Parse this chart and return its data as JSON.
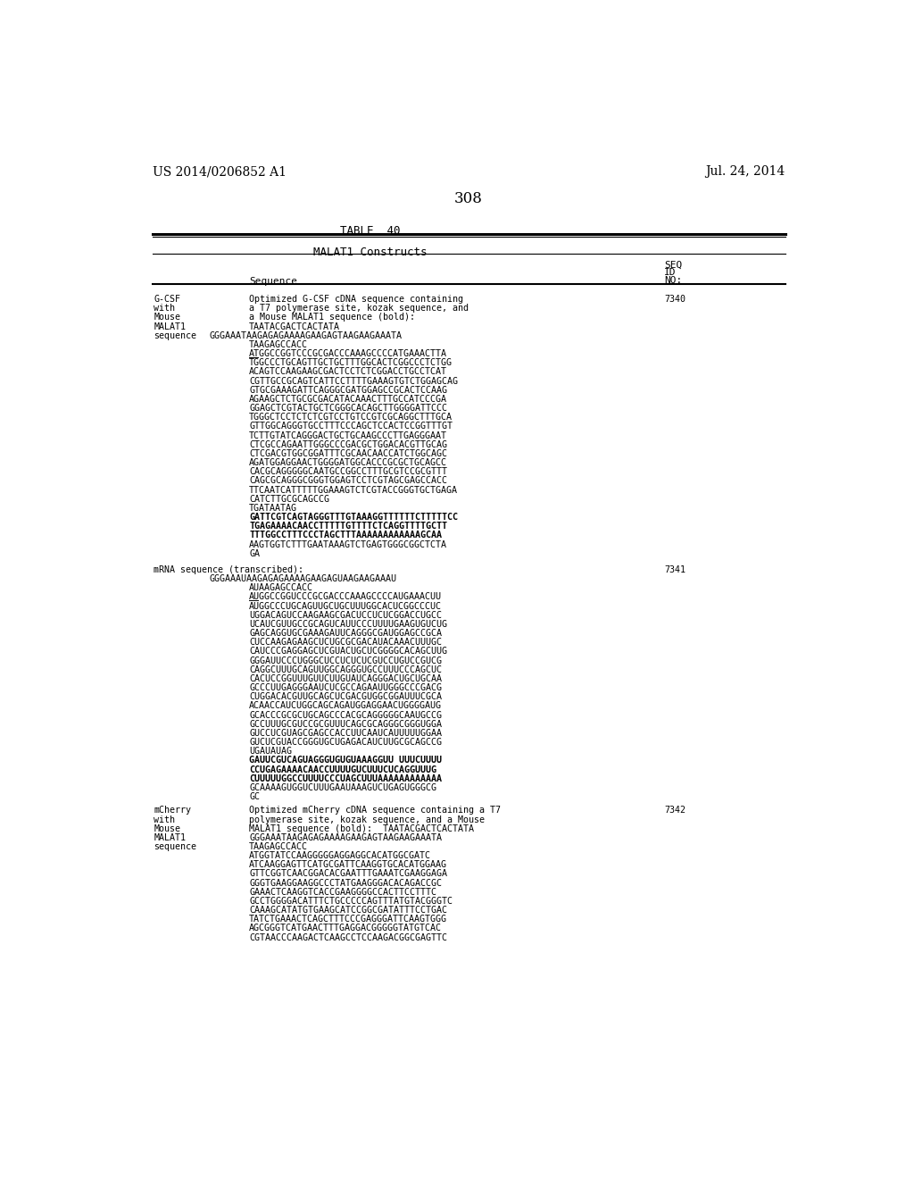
{
  "header_left": "US 2014/0206852 A1",
  "header_right": "Jul. 24, 2014",
  "page_number": "308",
  "table_title": "TABLE  40",
  "table_subtitle": "MALAT1 Constructs",
  "col_header_seq": "Sequence",
  "col_header_seqid_1": "SEQ",
  "col_header_seqid_2": "ID",
  "col_header_seqid_3": "NO:",
  "background_color": "#ffffff",
  "text_color": "#000000",
  "content": [
    {
      "col1_lines": [
        "G-CSF",
        "with",
        "Mouse",
        "MALAT1",
        "sequence"
      ],
      "col2_lines": [
        {
          "text": "Optimized G-CSF cDNA sequence containing",
          "bold": false,
          "col2_indent": true
        },
        {
          "text": "a T7 polymerase site, kozak sequence, and",
          "bold": false,
          "col2_indent": true
        },
        {
          "text": "a Mouse MALAT1 sequence (bold):",
          "bold": false,
          "col2_indent": true
        },
        {
          "text": "TAATACGACTCACTATA",
          "bold": false,
          "col2_indent": true
        },
        {
          "text": "GGGAAATAAGAGAGAAAAGAAGAGTAAGAAGAAATA",
          "bold": false,
          "col2_indent": false
        },
        {
          "text": "TAAGAGCCACC",
          "bold": false,
          "col2_indent": true
        },
        {
          "text": "ATGGCCGGTCCCGCGACCCAAAGCCCCATGAAACTTA",
          "bold": false,
          "col2_indent": true,
          "underline_atg": true
        },
        {
          "text": "TGGCCCTGCAGTTGCTGCTTTGGCACTCGGCCCTCTGG",
          "bold": false,
          "col2_indent": true
        },
        {
          "text": "ACAGTCCAAGAAGCGACTCCTCTCGGACCTGCCTCAT",
          "bold": false,
          "col2_indent": true
        },
        {
          "text": "CGTTGCCGCAGTCATTCCTTTTGAAAGTGTCTGGAGCAG",
          "bold": false,
          "col2_indent": true
        },
        {
          "text": "GTGCGAAAGATTCAGGGCGATGGAGCCGCACTCCAAG",
          "bold": false,
          "col2_indent": true
        },
        {
          "text": "AGAAGCTCTGCGCGACATACAAACTTTGCCATCCCGA",
          "bold": false,
          "col2_indent": true
        },
        {
          "text": "GGAGCTCGTACTGCTCGGGCACAGCTTGGGGATTCCC",
          "bold": false,
          "col2_indent": true
        },
        {
          "text": "TGGGCTCCTCTCTCGTCCTGTCCGTCGCAGGCTTTGCA",
          "bold": false,
          "col2_indent": true
        },
        {
          "text": "GTTGGCAGGGTGCCTTTCCCAGCTCCACTCCGGTTTGT",
          "bold": false,
          "col2_indent": true
        },
        {
          "text": "TCTTGTATCAGGGACTGCTGCAAGCCCTTGAGGGAAT",
          "bold": false,
          "col2_indent": true
        },
        {
          "text": "CTCGCCAGAATTGGGCCCGACGCTGGACACGTTGCAG",
          "bold": false,
          "col2_indent": true
        },
        {
          "text": "CTCGACGTGGCGGATTTCGCAACAACCATCTGGCAGC",
          "bold": false,
          "col2_indent": true
        },
        {
          "text": "AGATGGAGGAACTGGGGATGGCACCCGCGCTGCAGCC",
          "bold": false,
          "col2_indent": true
        },
        {
          "text": "CACGCAGGGGGCAATGCCGGCCTTTGCGTCCGCGTTT",
          "bold": false,
          "col2_indent": true
        },
        {
          "text": "CAGCGCAGGGCGGGTGGAGTCCTCGTAGCGAGCCACC",
          "bold": false,
          "col2_indent": true
        },
        {
          "text": "TTCAATCATTTTTGGAAAGTCTCGTACCGGGTGCTGAGA",
          "bold": false,
          "col2_indent": true
        },
        {
          "text": "CATCTTGCGCAGCCG",
          "bold": false,
          "col2_indent": true
        },
        {
          "text": "TGATAATAG",
          "bold": false,
          "col2_indent": true
        },
        {
          "text": "GATTCGTCAGTAGGGTTTGTAAAGGTTTTTTCTTTTTCC",
          "bold": true,
          "col2_indent": true
        },
        {
          "text": "TGAGAAAACAACCTTTTTGTTTTCTCAGGTTTTGCTT",
          "bold": true,
          "col2_indent": true
        },
        {
          "text": "TTTGGCCTTTCCCTAGCTTTAAAAAAAAAAAAGCAA",
          "bold": true,
          "col2_indent": true
        },
        {
          "text": "AAGTGGTCTTTGAATAAAGTCTGAGTGGGCGGCTCTA",
          "bold": false,
          "col2_indent": true
        },
        {
          "text": "GA",
          "bold": false,
          "col2_indent": true
        }
      ],
      "col3": "7340"
    },
    {
      "col1_lines": [
        "mRNA sequence (transcribed):"
      ],
      "col2_lines": [
        {
          "text": "GGGAAAUAAGAGAGAAAAGAAGAGUAAGAAGAAAU",
          "bold": false,
          "col2_indent": false
        },
        {
          "text": "AUAAGAGCCACC",
          "bold": false,
          "col2_indent": true
        },
        {
          "text": "AUGGCCGGUCCCGCGACCCAAAGCCCCAUGAAACUU",
          "bold": false,
          "col2_indent": true,
          "underline_atg": true
        },
        {
          "text": "AUGGCCCUGCAGUUGCUGCUUUGGCACUCGGCCCUC",
          "bold": false,
          "col2_indent": true
        },
        {
          "text": "UGGACAGUCCAAGAAGCGACUCCUCUCGGACCUGCC",
          "bold": false,
          "col2_indent": true
        },
        {
          "text": "UCAUCGUUGCCGCAGUCAUUCCCUUUUGAAGUGUCUG",
          "bold": false,
          "col2_indent": true
        },
        {
          "text": "GAGCAGGUGCGAAAGAUUCAGGGCGAUGGAGCCGCA",
          "bold": false,
          "col2_indent": true
        },
        {
          "text": "CUCCAAGAGAAGCUCUGCGCGACAUACAAACUUUGC",
          "bold": false,
          "col2_indent": true
        },
        {
          "text": "CAUCCCGAGGAGCUCGUACUGCUCGGGGCACAGCUUG",
          "bold": false,
          "col2_indent": true
        },
        {
          "text": "GGGAUUCCCUGGGCUCCUCUCUCGUCCUGUCCGUCG",
          "bold": false,
          "col2_indent": true
        },
        {
          "text": "CAGGCUUUGCAGUUGGCAGGGUGCCUUUCCCAGCUC",
          "bold": false,
          "col2_indent": true
        },
        {
          "text": "CACUCCGGUUUGUUCUUGUAUCAGGGACUGCUGCAA",
          "bold": false,
          "col2_indent": true
        },
        {
          "text": "GCCCUUGAGGGAAUCUCGCCAGAAUUGGGCCCGACG",
          "bold": false,
          "col2_indent": true
        },
        {
          "text": "CUGGACACGUUGCAGCUCGACGUGGCGGAUUUCGCA",
          "bold": false,
          "col2_indent": true
        },
        {
          "text": "ACAACCAUCUGGCAGCAGAUGGAGGAACUGGGGAUG",
          "bold": false,
          "col2_indent": true
        },
        {
          "text": "GCACCCGCGCUGCAGCCCACGCAGGGGGCAAUGCCG",
          "bold": false,
          "col2_indent": true
        },
        {
          "text": "GCCUUUGCGUCCGCGUUUCAGCGCAGGGCGGGUGGA",
          "bold": false,
          "col2_indent": true
        },
        {
          "text": "GUCCUCGUAGCGAGCCACCUUCAAUCAUUUUUGGAA",
          "bold": false,
          "col2_indent": true
        },
        {
          "text": "GUCUCGUACCGGGUGCUGAGACAUCUUGCGCAGCCG",
          "bold": false,
          "col2_indent": true
        },
        {
          "text": "UGAUAUAG",
          "bold": false,
          "col2_indent": true
        },
        {
          "text": "GAUUCGUCAGUAGGGUGUGUAAAGGUU UUUCUUUU",
          "bold": true,
          "col2_indent": true
        },
        {
          "text": "CCUGAGAAAACAACCUUUUGUCUUUCUCAGGUUUG",
          "bold": true,
          "col2_indent": true
        },
        {
          "text": "CUUUUUGGCCUUUUCCCUAGCUUUAAAAAAAAAAAA",
          "bold": true,
          "col2_indent": true
        },
        {
          "text": "GCAAAAGUGGUCUUUGAAUAAAGUCUGAGUGGGCG",
          "bold": false,
          "col2_indent": true
        },
        {
          "text": "GC",
          "bold": false,
          "col2_indent": true
        }
      ],
      "col3": "7341"
    },
    {
      "col1_lines": [
        "mCherry",
        "with",
        "Mouse",
        "MALAT1",
        "sequence"
      ],
      "col2_lines": [
        {
          "text": "Optimized mCherry cDNA sequence containing a T7",
          "bold": false,
          "col2_indent": true
        },
        {
          "text": "polymerase site, kozak sequence, and a Mouse",
          "bold": false,
          "col2_indent": true
        },
        {
          "text": "MALAT1 sequence (bold):  TAATACGACTCACTATA",
          "bold": false,
          "col2_indent": true
        },
        {
          "text": "GGGAAATAAGAGAGAAAAGAAGAGTAAGAAGAAATA",
          "bold": false,
          "col2_indent": true
        },
        {
          "text": "TAAGAGCCACC",
          "bold": false,
          "col2_indent": true
        },
        {
          "text": "ATGGTATCCAAGGGGGAGGAGGCACATGGCGATC",
          "bold": false,
          "col2_indent": true
        },
        {
          "text": "ATCAAGGAGTTCATGCGATTCAAGGTGCACATGGAAG",
          "bold": false,
          "col2_indent": true
        },
        {
          "text": "GTTCGGTCAACGGACACGAATTTGAAATCGAAGGAGA",
          "bold": false,
          "col2_indent": true
        },
        {
          "text": "GGGTGAAGGAAGGCCCTATGAAGGGACACAGACCGC",
          "bold": false,
          "col2_indent": true
        },
        {
          "text": "GAAACTCAAGGTCACCGAAGGGGCCACTTCCTTTC",
          "bold": false,
          "col2_indent": true
        },
        {
          "text": "GCCTGGGGACATTTCTGCCCCCAGTTTATGTACGGGTC",
          "bold": false,
          "col2_indent": true
        },
        {
          "text": "CAAAGCATATGTGAAGCATCCGGCGATATTTCCTGAC",
          "bold": false,
          "col2_indent": true
        },
        {
          "text": "TATCTGAAACTCAGCTTTCCCGAGGGATTCAAGTGGG",
          "bold": false,
          "col2_indent": true
        },
        {
          "text": "AGCGGGTCATGAACTTTGAGGACGGGGGTATGTCAC",
          "bold": false,
          "col2_indent": true
        },
        {
          "text": "CGTAACCCAAGACTCAAGCCTCCAAGACGGCGAGTTC",
          "bold": false,
          "col2_indent": true
        }
      ],
      "col3": "7342"
    }
  ]
}
